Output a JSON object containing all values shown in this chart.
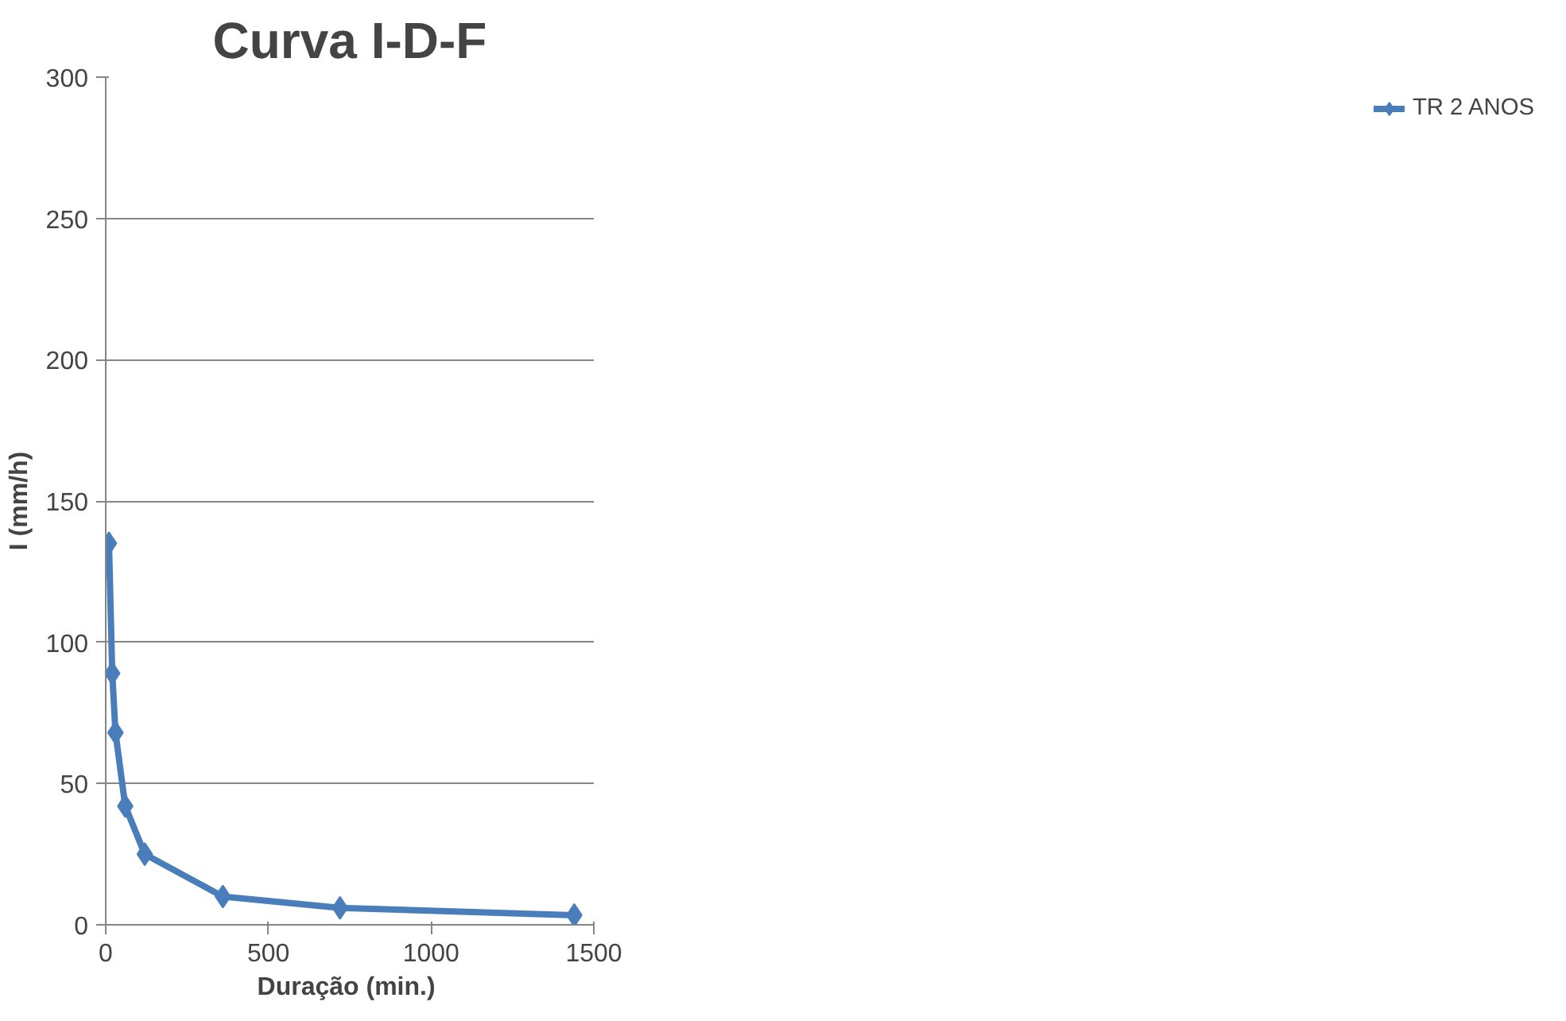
{
  "chart_data": {
    "type": "line",
    "title": "Curva I-D-F",
    "xlabel": "Duração  (min.)",
    "ylabel": "I (mm/h)",
    "x": [
      10,
      20,
      30,
      60,
      120,
      360,
      720,
      1440
    ],
    "series": [
      {
        "name": "TR 2 ANOS",
        "color": "#4a7ebb",
        "values": [
          135,
          89,
          68,
          42,
          25,
          10,
          6,
          3.4
        ]
      }
    ],
    "xlim": [
      0,
      1500
    ],
    "xticks": [
      0,
      500,
      1000,
      1500
    ],
    "ylim": [
      0,
      300
    ],
    "yticks": [
      0,
      50,
      100,
      150,
      200,
      250,
      300
    ],
    "grid": "y",
    "legend": "right",
    "marker": "diamond",
    "line_style": "solid"
  }
}
